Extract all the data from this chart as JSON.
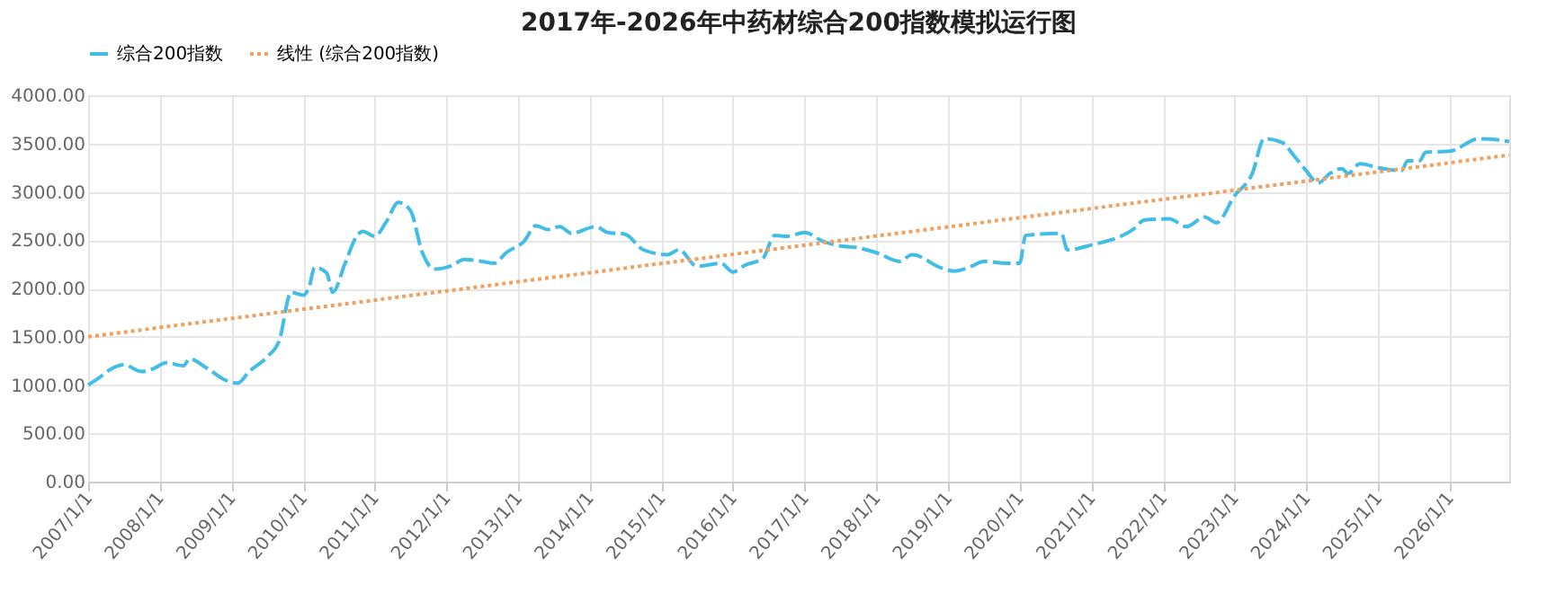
{
  "chart_data": {
    "type": "line",
    "title": "2017年-2026年中药材综合200指数模拟运行图",
    "legend": "top",
    "grid": true,
    "xlim": [
      "2007-01",
      "2026-11"
    ],
    "xticks": [
      {
        "value": "2007-01-01",
        "label": "2007/1/1"
      },
      {
        "value": "2008-01-01",
        "label": "2008/1/1"
      },
      {
        "value": "2009-01-01",
        "label": "2009/1/1"
      },
      {
        "value": "2010-01-01",
        "label": "2010/1/1"
      },
      {
        "value": "2011-01-01",
        "label": "2011/1/1"
      },
      {
        "value": "2012-01-01",
        "label": "2012/1/1"
      },
      {
        "value": "2013-01-01",
        "label": "2013/1/1"
      },
      {
        "value": "2014-01-01",
        "label": "2014/1/1"
      },
      {
        "value": "2015-01-01",
        "label": "2015/1/1"
      },
      {
        "value": "2016-01-01",
        "label": "2016/1/1"
      },
      {
        "value": "2017-01-01",
        "label": "2017/1/1"
      },
      {
        "value": "2018-01-01",
        "label": "2018/1/1"
      },
      {
        "value": "2019-01-01",
        "label": "2019/1/1"
      },
      {
        "value": "2020-01-01",
        "label": "2020/1/1"
      },
      {
        "value": "2021-01-01",
        "label": "2021/1/1"
      },
      {
        "value": "2022-01-01",
        "label": "2022/1/1"
      },
      {
        "value": "2023-01-01",
        "label": "2023/1/1"
      },
      {
        "value": "2024-01-01",
        "label": "2024/1/1"
      },
      {
        "value": "2025-01-01",
        "label": "2025/1/1"
      },
      {
        "value": "2026-01-01",
        "label": "2026/1/1"
      }
    ],
    "ylim": [
      0,
      4000
    ],
    "yticks": [
      {
        "value": 0,
        "label": "0.00"
      },
      {
        "value": 500,
        "label": "500.00"
      },
      {
        "value": 1000,
        "label": "1000.00"
      },
      {
        "value": 1500,
        "label": "1500.00"
      },
      {
        "value": 2000,
        "label": "2000.00"
      },
      {
        "value": 2500,
        "label": "2500.00"
      },
      {
        "value": 3000,
        "label": "3000.00"
      },
      {
        "value": 3500,
        "label": "3500.00"
      },
      {
        "value": 4000,
        "label": "4000.00"
      }
    ],
    "series": [
      {
        "name": "综合200指数",
        "color": "#41bde6",
        "line_style": "dashed",
        "x": [
          "2007-01",
          "2007-03",
          "2007-05",
          "2007-07",
          "2007-10",
          "2007-12",
          "2008-02",
          "2008-05",
          "2008-06",
          "2008-09",
          "2008-12",
          "2009-02",
          "2009-04",
          "2009-07",
          "2009-09",
          "2009-11",
          "2010-01",
          "2010-02",
          "2010-03",
          "2010-05",
          "2010-06",
          "2010-08",
          "2010-10",
          "2010-11",
          "2011-01",
          "2011-03",
          "2011-05",
          "2011-07",
          "2011-09",
          "2011-11",
          "2012-02",
          "2012-04",
          "2012-07",
          "2012-09",
          "2012-11",
          "2013-02",
          "2013-04",
          "2013-06",
          "2013-08",
          "2013-10",
          "2014-02",
          "2014-04",
          "2014-07",
          "2014-10",
          "2015-02",
          "2015-04",
          "2015-07",
          "2015-11",
          "2016-01",
          "2016-03",
          "2016-06",
          "2016-08",
          "2016-10",
          "2017-01",
          "2017-04",
          "2017-07",
          "2017-10",
          "2018-01",
          "2018-05",
          "2018-07",
          "2018-12",
          "2019-02",
          "2019-05",
          "2019-07",
          "2019-11",
          "2020-01",
          "2020-02",
          "2020-08",
          "2020-09",
          "2021-01",
          "2021-08",
          "2021-10",
          "2022-02",
          "2022-05",
          "2022-08",
          "2022-10",
          "2023-01",
          "2023-04",
          "2023-06",
          "2023-09",
          "2023-11",
          "2024-01",
          "2024-03",
          "2024-05",
          "2024-07",
          "2024-08",
          "2024-10",
          "2025-01",
          "2025-05",
          "2025-06",
          "2025-08",
          "2025-09",
          "2026-01",
          "2026-06",
          "2026-09",
          "2026-11"
        ],
        "values": [
          1000,
          1080,
          1170,
          1210,
          1140,
          1170,
          1230,
          1200,
          1270,
          1170,
          1050,
          1020,
          1140,
          1290,
          1460,
          1960,
          1930,
          2020,
          2220,
          2160,
          1960,
          2250,
          2540,
          2590,
          2540,
          2690,
          2890,
          2810,
          2370,
          2200,
          2240,
          2300,
          2280,
          2260,
          2370,
          2490,
          2650,
          2610,
          2640,
          2570,
          2640,
          2580,
          2560,
          2400,
          2350,
          2400,
          2230,
          2260,
          2170,
          2240,
          2310,
          2550,
          2540,
          2580,
          2490,
          2440,
          2420,
          2370,
          2280,
          2350,
          2210,
          2180,
          2230,
          2280,
          2260,
          2260,
          2550,
          2570,
          2400,
          2450,
          2610,
          2710,
          2720,
          2640,
          2740,
          2680,
          2960,
          3190,
          3550,
          3510,
          3370,
          3220,
          3090,
          3190,
          3240,
          3190,
          3290,
          3250,
          3220,
          3320,
          3320,
          3410,
          3420,
          3550,
          3540,
          3520
        ]
      },
      {
        "name": "线性 (综合200指数)",
        "color": "#f0a060",
        "line_style": "dotted",
        "x": [
          "2007-01",
          "2026-11"
        ],
        "values": [
          1500,
          3380
        ]
      }
    ]
  }
}
